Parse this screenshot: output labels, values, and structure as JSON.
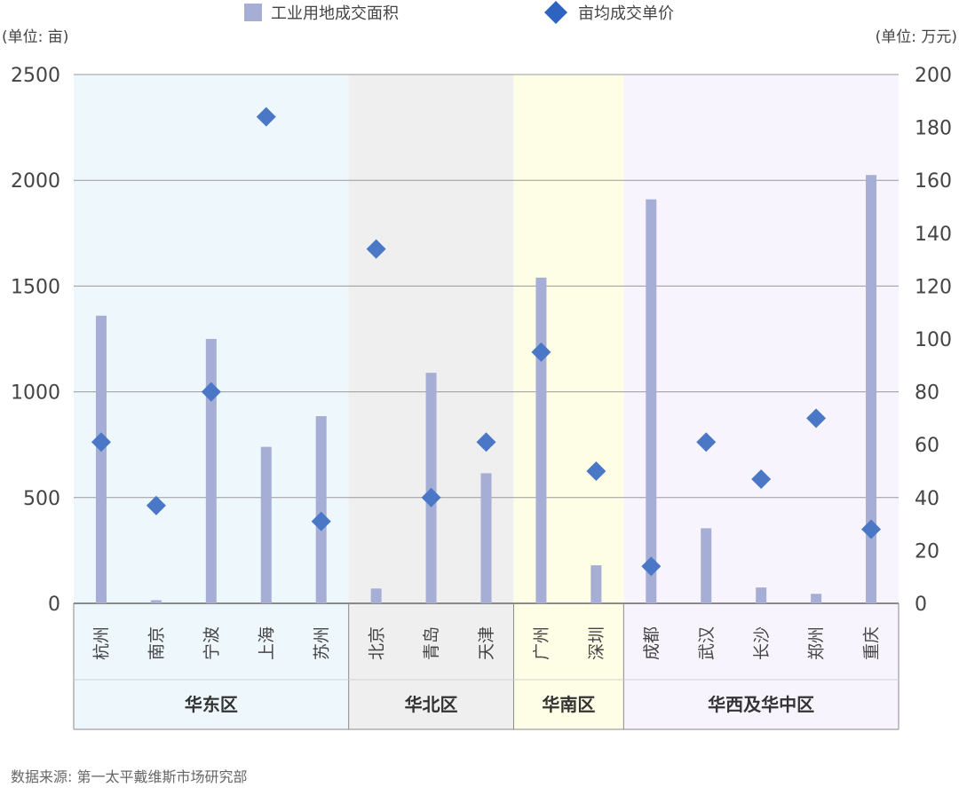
{
  "chart_data": {
    "type": "bar",
    "legend": {
      "placement": "top-center",
      "bar_label": "工业用地成交面积",
      "marker_label": "亩均成交单价"
    },
    "left_axis": {
      "unit_label": "(单位: 亩)",
      "ylim": [
        0,
        2500
      ],
      "ticks": [
        "0",
        "500",
        "1000",
        "1500",
        "2000",
        "2500"
      ]
    },
    "right_axis": {
      "unit_label": "(单位: 万元)",
      "ylim": [
        0,
        200
      ],
      "ticks": [
        "0",
        "20",
        "40",
        "60",
        "80",
        "100",
        "120",
        "140",
        "160",
        "180",
        "200"
      ]
    },
    "grid": true,
    "categories": [
      "杭州",
      "南京",
      "宁波",
      "上海",
      "苏州",
      "北京",
      "青岛",
      "天津",
      "广州",
      "深圳",
      "成都",
      "武汉",
      "长沙",
      "郑州",
      "重庆"
    ],
    "regions": [
      {
        "name": "华东区",
        "count": 5,
        "color": "#eef7fc"
      },
      {
        "name": "华北区",
        "count": 3,
        "color": "#efefef"
      },
      {
        "name": "华南区",
        "count": 2,
        "color": "#fefee6"
      },
      {
        "name": "华西及华中区",
        "count": 5,
        "color": "#f8f4fd"
      }
    ],
    "series": [
      {
        "name": "工业用地成交面积",
        "kind": "bar",
        "axis": "left",
        "color": "#a6aed6",
        "values": [
          1360,
          15,
          1250,
          740,
          885,
          70,
          1090,
          615,
          1540,
          180,
          1910,
          355,
          75,
          45,
          2025
        ]
      },
      {
        "name": "亩均成交单价",
        "kind": "marker",
        "axis": "right",
        "color": "#4a77c6",
        "values": [
          61,
          37,
          80,
          184,
          31,
          134,
          40,
          61,
          95,
          50,
          14,
          61,
          47,
          70,
          28
        ]
      }
    ]
  },
  "footer": {
    "source": "数据来源: 第一太平戴维斯市场研究部"
  }
}
